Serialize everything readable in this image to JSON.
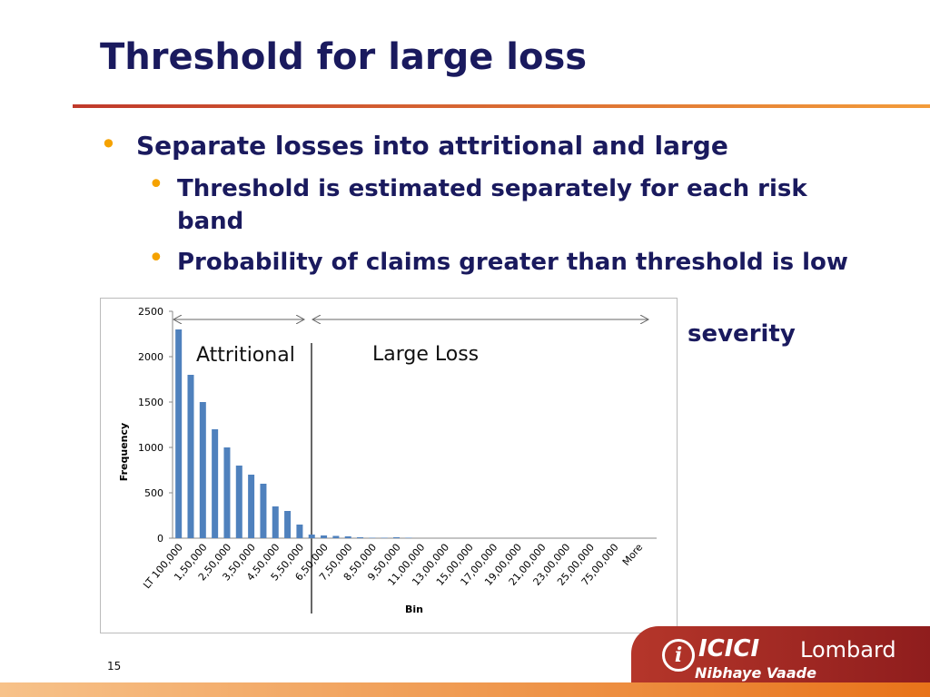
{
  "header": {
    "title": "Threshold for large loss"
  },
  "bullets": [
    {
      "text": "Separate losses into attritional and large",
      "children": [
        "Threshold is estimated separately for each risk band",
        "Probability of claims greater than threshold is low"
      ]
    }
  ],
  "hidden_bullet_tail": "severity",
  "chart_data": {
    "type": "bar",
    "x_label": "Bin",
    "y_label": "Frequency",
    "categories": [
      "LT 100,000",
      null,
      "1,50,000",
      null,
      "2,50,000",
      null,
      "3,50,000",
      null,
      "4,50,000",
      null,
      "5,50,000",
      null,
      "6,50,000",
      null,
      "7,50,000",
      null,
      "8,50,000",
      null,
      "9,50,000",
      null,
      "11,00,000",
      null,
      "13,00,000",
      null,
      "15,00,000",
      null,
      "17,00,000",
      null,
      "19,00,000",
      null,
      "21,00,000",
      null,
      "23,00,000",
      null,
      "25,00,000",
      null,
      "75,00,000",
      null,
      "More",
      null
    ],
    "values": [
      2300,
      1800,
      1500,
      1200,
      1000,
      800,
      700,
      600,
      350,
      300,
      150,
      40,
      30,
      25,
      20,
      10,
      5,
      5,
      10,
      5,
      0,
      0,
      0,
      0,
      0,
      0,
      0,
      0,
      0,
      0,
      0,
      0,
      0,
      0,
      0,
      0,
      0,
      0,
      0,
      0
    ],
    "color": "#4f81bd",
    "ylim": [
      0,
      2500
    ],
    "yticks": [
      0,
      500,
      1000,
      1500,
      2000,
      2500
    ],
    "annotations": [
      "Attritional",
      "Large Loss"
    ]
  },
  "footer": {
    "page_number": "15",
    "brand_primary": "ICICI",
    "brand_secondary": "Lombard",
    "tagline": "Nibhaye Vaade"
  }
}
